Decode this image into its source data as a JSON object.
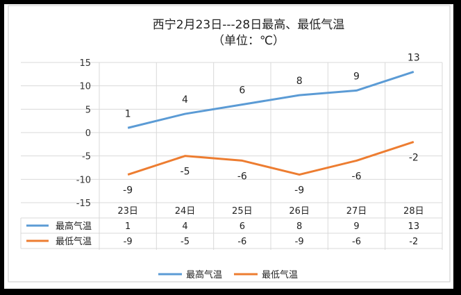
{
  "chart_data": {
    "type": "line",
    "title": "西宁2月23日---28日最高、最低气温",
    "subtitle": "（单位：℃）",
    "categories": [
      "23日",
      "24日",
      "25日",
      "26日",
      "27日",
      "28日"
    ],
    "series": [
      {
        "name": "最高气温",
        "values": [
          1,
          4,
          6,
          8,
          9,
          13
        ],
        "color": "#5b9bd5"
      },
      {
        "name": "最低气温",
        "values": [
          -9,
          -5,
          -6,
          -9,
          -6,
          -2
        ],
        "color": "#ed7d31"
      }
    ],
    "ylim": [
      -15,
      15
    ],
    "yticks": [
      15,
      10,
      5,
      0,
      -5,
      -10,
      -15
    ],
    "grid": true,
    "legend": "bottom",
    "data_table": true
  }
}
